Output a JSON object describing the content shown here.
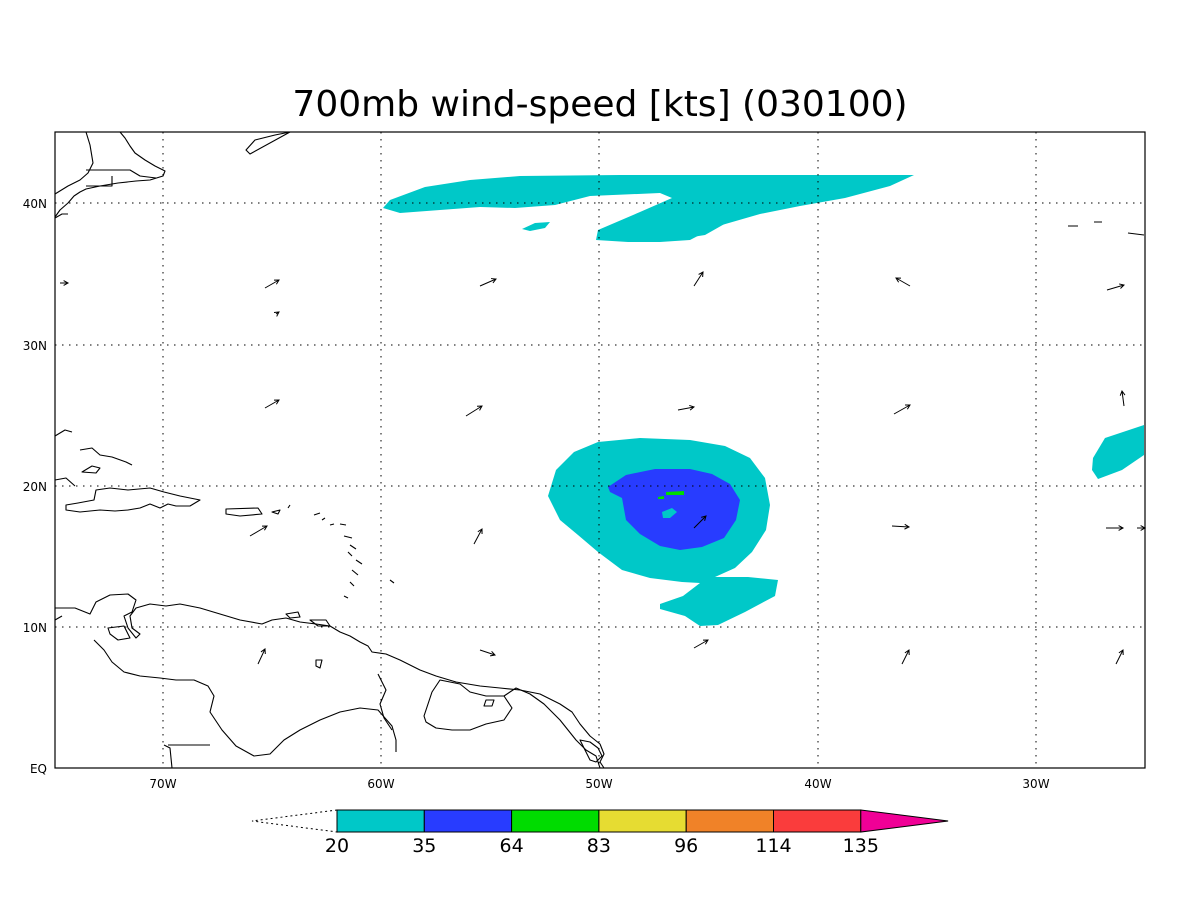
{
  "title": "700mb wind-speed [kts] (030100)",
  "x_axis_labels": [
    "70W",
    "60W",
    "50W",
    "40W",
    "30W"
  ],
  "y_axis_labels": [
    "40N",
    "30N",
    "20N",
    "10N",
    "EQ"
  ],
  "colorbar": {
    "labels": [
      "20",
      "35",
      "64",
      "83",
      "96",
      "114",
      "135"
    ],
    "colors": [
      "#00c8c8",
      "#283cff",
      "#00dc00",
      "#e6dc32",
      "#f08228",
      "#fa3c3c",
      "#f00096"
    ]
  },
  "map": {
    "lon_range": [
      -75,
      -25
    ],
    "lat_range": [
      0,
      45
    ],
    "features": [
      "wind-speed-shading",
      "wind-vectors",
      "coastlines",
      "dotted-graticule"
    ]
  }
}
